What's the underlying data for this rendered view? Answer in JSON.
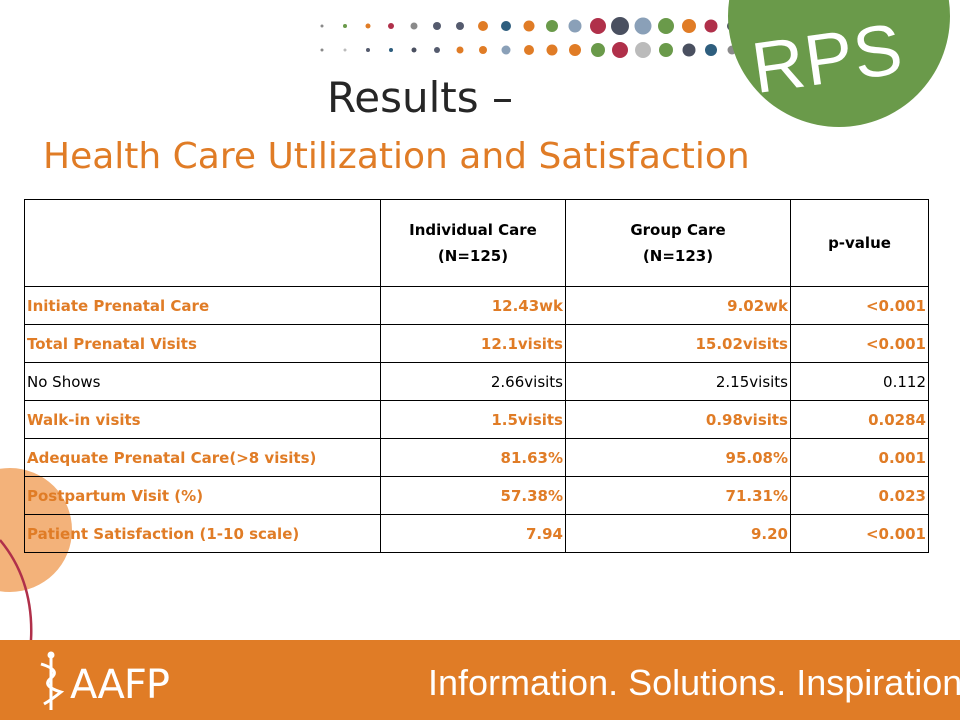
{
  "brand": {
    "rps_label": "RPS",
    "footer_logo_text": "AAFP",
    "tagline": "Information. Solutions. Inspiration.",
    "colors": {
      "orange": "#e07c26",
      "green": "#6a9a4a",
      "dark": "#262626"
    }
  },
  "title": {
    "line1": "Results –",
    "line2": "Health Care Utilization and Satisfaction"
  },
  "table": {
    "headers": [
      {
        "line1": "",
        "line2": ""
      },
      {
        "line1": "Individual Care",
        "line2": "(N=125)"
      },
      {
        "line1": "Group Care",
        "line2": "(N=123)"
      },
      {
        "line1": "p-value",
        "line2": ""
      }
    ],
    "rows": [
      {
        "label": "Initiate Prenatal Care",
        "individual": "12.43wk",
        "group": "9.02wk",
        "p": "<0.001",
        "highlight": true
      },
      {
        "label": "Total Prenatal Visits",
        "individual": "12.1visits",
        "group": "15.02visits",
        "p": "<0.001",
        "highlight": true
      },
      {
        "label": "No Shows",
        "individual": "2.66visits",
        "group": "2.15visits",
        "p": "0.112",
        "highlight": false
      },
      {
        "label": "Walk-in visits",
        "individual": "1.5visits",
        "group": "0.98visits",
        "p": "0.0284",
        "highlight": true
      },
      {
        "label": "Adequate Prenatal Care(>8 visits)",
        "individual": "81.63%",
        "group": "95.08%",
        "p": "0.001",
        "highlight": true
      },
      {
        "label": "Postpartum Visit (%)",
        "individual": "57.38%",
        "group": "71.31%",
        "p": "0.023",
        "highlight": true
      },
      {
        "label": "Patient Satisfaction (1-10 scale)",
        "individual": "7.94",
        "group": "9.20",
        "p": "<0.001",
        "highlight": true
      }
    ]
  }
}
